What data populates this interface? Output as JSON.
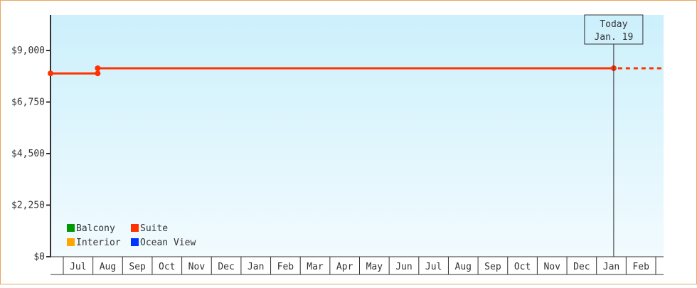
{
  "chart_data": {
    "type": "line",
    "ylim": [
      0,
      10500
    ],
    "y_ticks": [
      0,
      2250,
      4500,
      6750,
      9000
    ],
    "y_tick_labels": [
      "$0",
      "$2,250",
      "$4,500",
      "$6,750",
      "$9,000"
    ],
    "x_tick_labels": [
      "Jul",
      "Aug",
      "Sep",
      "Oct",
      "Nov",
      "Dec",
      "Jan",
      "Feb",
      "Mar",
      "Apr",
      "May",
      "Jun",
      "Jul",
      "Aug",
      "Sep",
      "Oct",
      "Nov",
      "Dec",
      "Jan",
      "Feb"
    ],
    "x_start": "Jun 18",
    "grid": false,
    "legend_placement": "bottom-left",
    "legend": [
      {
        "name": "Balcony",
        "color": "#009900"
      },
      {
        "name": "Suite",
        "color": "#ff3300"
      },
      {
        "name": "Interior",
        "color": "#ffa500"
      },
      {
        "name": "Ocean View",
        "color": "#0033ff"
      }
    ],
    "series": [
      {
        "name": "Suite",
        "color": "#ff3300",
        "points": [
          {
            "month_index": -1,
            "day": 18,
            "value": 8000
          },
          {
            "month_index": 1,
            "day": 6,
            "value": 8000
          },
          {
            "month_index": 1,
            "day": 6,
            "value": 8225
          },
          {
            "month_index": 18,
            "day": 19,
            "value": 8225
          }
        ],
        "projection_value": 8225
      }
    ],
    "today_marker": {
      "line1": "Today",
      "line2": "Jan. 19",
      "month_index": 18,
      "day": 19
    },
    "colors": {
      "plot_top": "#ccf0fc",
      "plot_bottom": "#f2fbfe",
      "axis": "#333333",
      "border": "#eaa65c"
    }
  }
}
